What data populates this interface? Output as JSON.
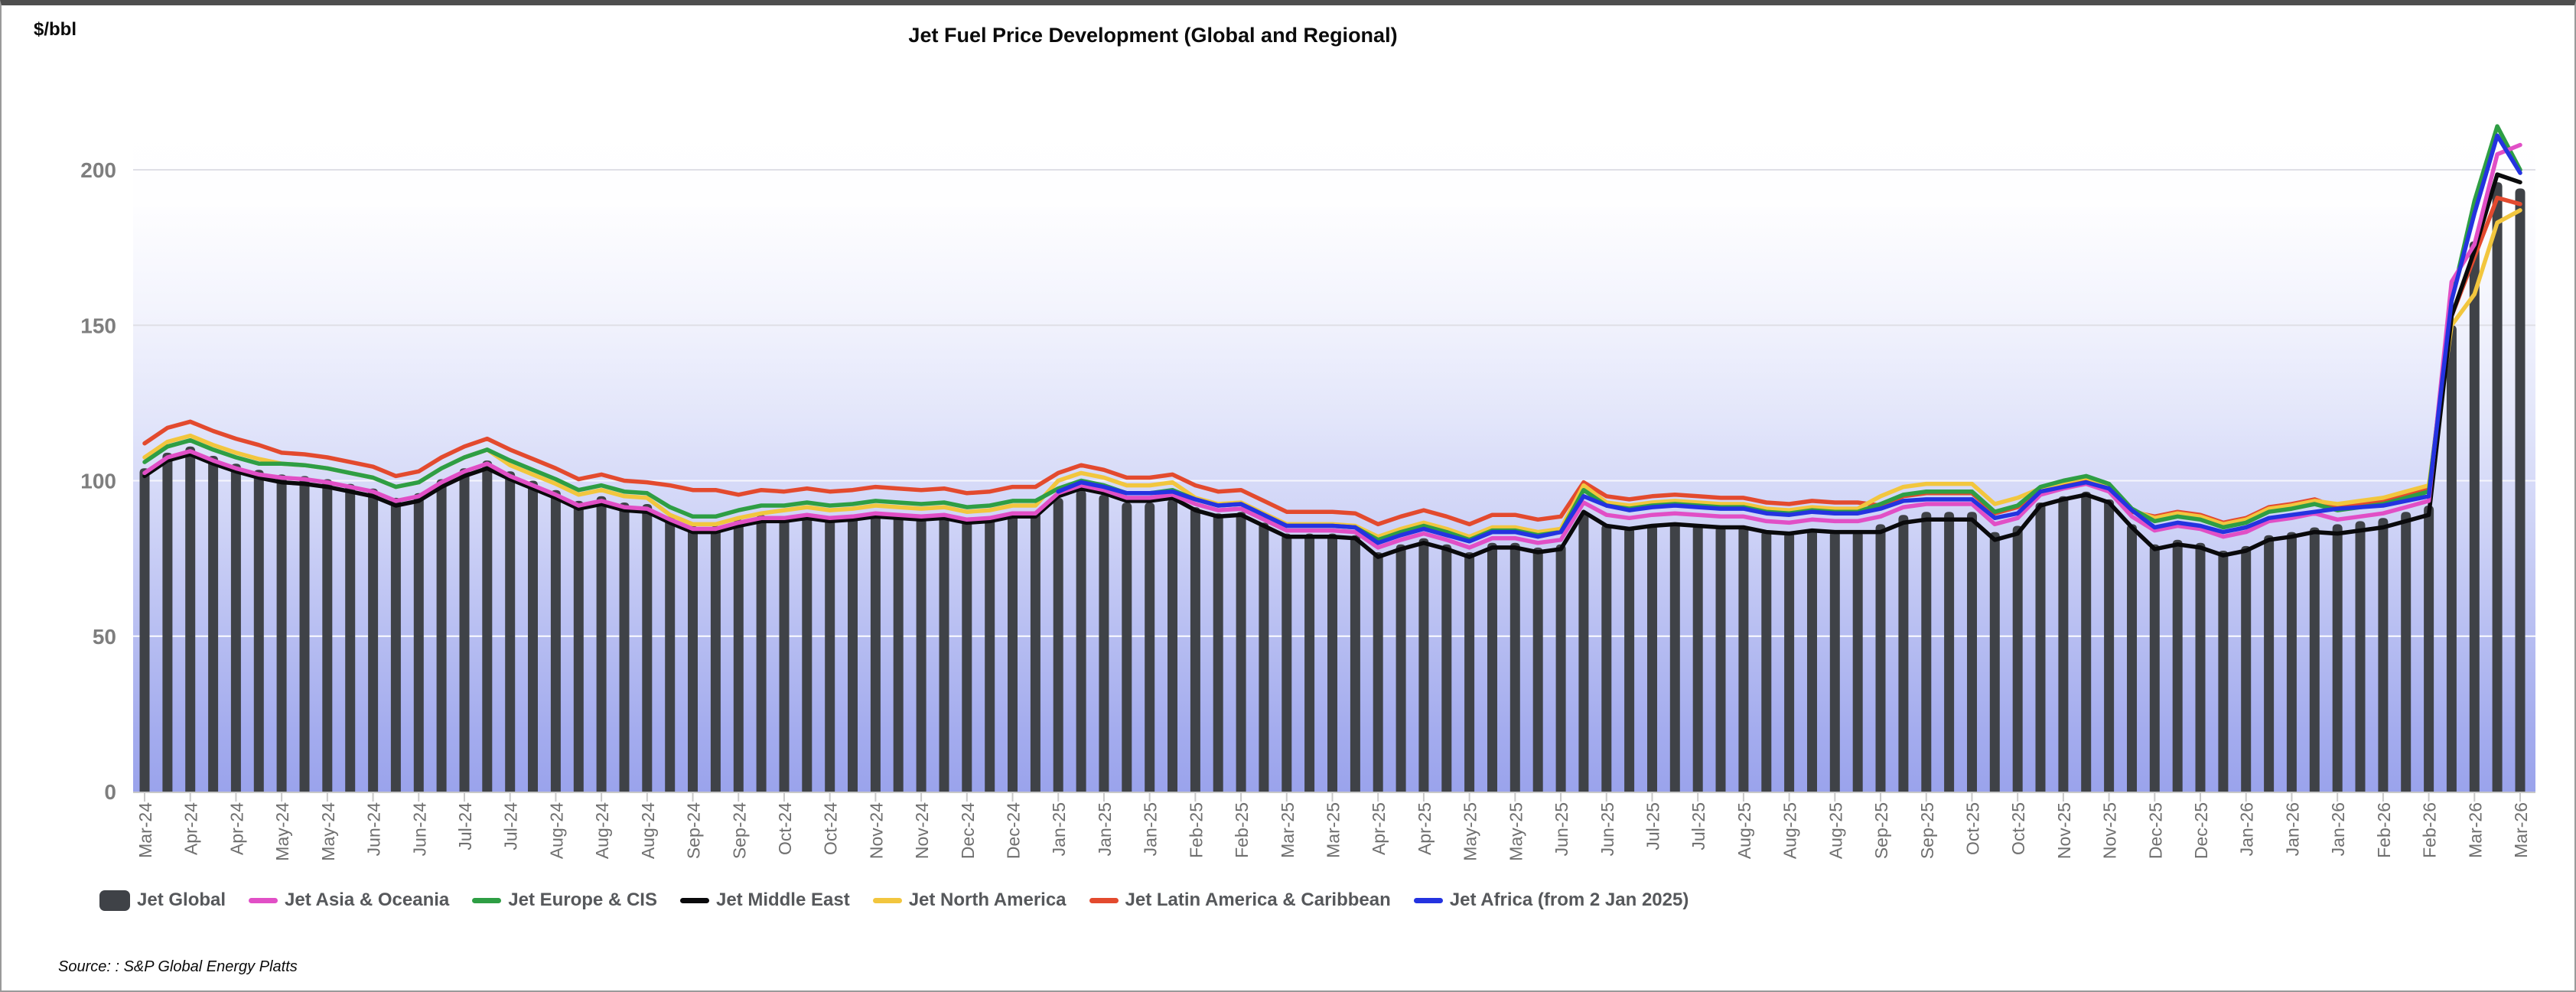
{
  "header": {
    "title": "Jet Fuel Price Development (Global and Regional)",
    "unit": "$/bbl"
  },
  "source": {
    "note": "Source: : S&P Global Energy Platts"
  },
  "chart_data": {
    "type": "bar+line",
    "title": "Jet Fuel Price Development (Global and Regional)",
    "ylabel": "$/bbl",
    "ylim": [
      0,
      216
    ],
    "yticks": [
      0,
      50,
      100,
      150,
      200
    ],
    "grid": "horizontal",
    "legend_position": "bottom",
    "plot_background": {
      "gradient_top": "#ffffff",
      "gradient_bottom": "#9aa3ec"
    },
    "x_label_every_n_bars": 2,
    "x_labels": [
      "Mar-24",
      "Apr-24",
      "Apr-24",
      "May-24",
      "May-24",
      "Jun-24",
      "Jun-24",
      "Jul-24",
      "Jul-24",
      "Aug-24",
      "Aug-24",
      "Aug-24",
      "Sep-24",
      "Sep-24",
      "Oct-24",
      "Oct-24",
      "Nov-24",
      "Nov-24",
      "Dec-24",
      "Dec-24",
      "Jan-25",
      "Jan-25",
      "Jan-25",
      "Feb-25",
      "Feb-25",
      "Mar-25",
      "Mar-25",
      "Apr-25",
      "Apr-25",
      "May-25",
      "May-25",
      "Jun-25",
      "Jun-25",
      "Jul-25",
      "Jul-25",
      "Aug-25",
      "Aug-25",
      "Aug-25",
      "Sep-25",
      "Sep-25",
      "Oct-25",
      "Oct-25",
      "Nov-25",
      "Nov-25",
      "Dec-25",
      "Dec-25",
      "Jan-26",
      "Jan-26",
      "Jan-26",
      "Feb-26",
      "Feb-26",
      "Mar-26",
      "Mar-26"
    ],
    "bar_series": {
      "name": "Jet Global",
      "color": "#3f4247",
      "values": [
        104,
        109,
        111,
        108,
        105.5,
        103.5,
        102,
        101.5,
        100.5,
        99,
        97.5,
        94.5,
        96,
        100.5,
        104,
        106.5,
        103,
        100,
        97,
        93.5,
        95,
        93,
        92.5,
        88.5,
        85.5,
        85.5,
        87.5,
        89,
        88.5,
        89.5,
        88.5,
        89,
        90,
        89.5,
        89,
        89.5,
        88,
        88.5,
        90,
        90,
        94.5,
        97,
        95.5,
        93,
        93,
        94,
        91.5,
        89.5,
        90,
        86.5,
        83,
        83,
        83,
        82.5,
        77,
        79.5,
        81.5,
        79.5,
        77,
        80,
        80,
        78.5,
        79.5,
        89.5,
        86,
        85,
        86,
        86.5,
        86,
        85.5,
        85.5,
        84,
        83.5,
        84.5,
        84,
        84,
        86,
        89,
        90,
        90,
        90,
        83.5,
        85.5,
        93,
        95,
        96.5,
        94,
        86,
        79.5,
        81,
        80,
        77.5,
        79,
        82.5,
        83.5,
        85,
        86,
        87,
        88,
        90,
        92,
        150,
        177,
        196,
        194
      ]
    },
    "line_series": [
      {
        "name": "Jet Asia & Oceania",
        "color": "#e14fc6",
        "values": [
          102.5,
          107.5,
          109.5,
          106.5,
          104,
          102,
          101,
          100.5,
          99.5,
          98,
          96.5,
          93.5,
          95,
          99.5,
          103,
          105.5,
          101.5,
          98.5,
          95.5,
          92,
          93.5,
          91.5,
          91,
          87.5,
          84.5,
          84.5,
          86.5,
          88,
          88,
          89,
          88,
          88.5,
          89.5,
          89,
          88.5,
          89,
          87.5,
          88,
          89.5,
          89.5,
          96,
          98.5,
          97,
          94.5,
          94.5,
          95.5,
          92.5,
          90.5,
          91,
          87.5,
          84,
          84,
          84,
          83.5,
          78.5,
          81,
          83,
          81,
          78.5,
          81.5,
          81.5,
          80,
          81,
          93,
          89,
          88,
          89,
          89.5,
          89,
          88.5,
          88.5,
          87,
          86.5,
          87.5,
          87,
          87,
          88.5,
          91.5,
          92.5,
          92.5,
          92.5,
          86,
          88,
          95.5,
          97.5,
          99,
          96.5,
          88.5,
          84,
          85.5,
          84.5,
          82,
          83.5,
          87,
          88,
          89.5,
          87.5,
          88.5,
          89.5,
          91.5,
          93.5,
          164,
          176,
          205,
          208
        ]
      },
      {
        "name": "Jet Europe & CIS",
        "color": "#2e9e44",
        "values": [
          106,
          111,
          113,
          110,
          107.5,
          105.5,
          105.5,
          105,
          104,
          102.5,
          101,
          98,
          99.5,
          104,
          107.5,
          110,
          106.5,
          103.5,
          100.5,
          97,
          98.5,
          96.5,
          96,
          91.5,
          88.5,
          88.5,
          90.5,
          92,
          92,
          93,
          92,
          92.5,
          93.5,
          93,
          92.5,
          93,
          91.5,
          92,
          93.5,
          93.5,
          97.5,
          100,
          98.5,
          96,
          96,
          97,
          94,
          92,
          92.5,
          89,
          85.5,
          85.5,
          85.5,
          85,
          81,
          83.5,
          85.5,
          83.5,
          81,
          84,
          84,
          82.5,
          83.5,
          97,
          92,
          91,
          92,
          92.5,
          92,
          91.5,
          91.5,
          90,
          89.5,
          90.5,
          90,
          90,
          92.5,
          95.5,
          96.5,
          96.5,
          96.5,
          90,
          92,
          98,
          100,
          101.5,
          99,
          91,
          87,
          88.5,
          87.5,
          85,
          86.5,
          90,
          91,
          92.5,
          90.5,
          91.5,
          92.5,
          94.5,
          96.5,
          158,
          190,
          214,
          200
        ]
      },
      {
        "name": "Jet Middle East",
        "color": "#0a0a0c",
        "values": [
          101.5,
          106.5,
          108.5,
          105.5,
          103,
          101,
          99.5,
          99,
          98,
          96.5,
          95,
          92,
          93.5,
          98,
          101.5,
          104,
          100.5,
          97.5,
          94.5,
          91,
          92.5,
          90.5,
          90,
          86.5,
          83.5,
          83.5,
          85.5,
          87,
          87,
          88,
          87,
          87.5,
          88.5,
          88,
          87.5,
          88,
          86.5,
          87,
          88.5,
          88.5,
          95,
          97.5,
          96,
          93.5,
          93.5,
          94.5,
          90.5,
          88.5,
          89,
          85.5,
          82,
          82,
          82,
          81.5,
          75.5,
          78,
          80,
          78,
          75.5,
          78.5,
          78.5,
          77,
          78,
          90,
          85.5,
          84.5,
          85.5,
          86,
          85.5,
          85,
          85,
          83.5,
          83,
          84,
          83.5,
          83.5,
          83.5,
          86.5,
          87.5,
          87.5,
          87.5,
          81,
          83,
          92,
          94,
          95.5,
          93,
          85,
          78,
          79.5,
          78.5,
          76,
          77.5,
          81,
          82,
          83.5,
          83,
          84,
          85,
          87,
          89,
          153,
          174,
          198.5,
          196
        ]
      },
      {
        "name": "Jet North America",
        "color": "#f2c63e",
        "values": [
          107.5,
          112.5,
          114.5,
          111.5,
          109,
          107,
          105.5,
          105,
          104,
          102.5,
          101,
          98,
          99.5,
          104,
          107.5,
          110,
          105,
          102,
          99,
          95.5,
          97,
          95,
          94.5,
          89,
          86,
          86,
          88,
          89.5,
          90.5,
          91.5,
          90.5,
          91,
          92,
          91.5,
          91,
          91.5,
          90,
          90.5,
          92,
          92,
          100,
          102.5,
          101,
          98.5,
          98.5,
          99.5,
          94.5,
          92.5,
          93,
          89.5,
          86,
          86,
          86,
          85.5,
          82,
          84.5,
          86.5,
          84.5,
          82,
          85,
          85,
          83.5,
          84.5,
          98.5,
          93,
          92,
          93,
          93.5,
          93,
          92.5,
          92.5,
          91,
          90.5,
          91.5,
          91,
          91,
          95,
          98,
          99,
          99,
          99,
          92.5,
          94.5,
          97.5,
          99.5,
          101,
          98.5,
          90.5,
          88,
          89.5,
          88.5,
          86,
          87.5,
          91,
          92,
          93.5,
          92.5,
          93.5,
          94.5,
          96.5,
          98.5,
          150,
          160,
          183,
          187
        ]
      },
      {
        "name": "Jet Latin America & Caribbean",
        "color": "#e34a2e",
        "values": [
          112,
          117,
          119,
          116,
          113.5,
          111.5,
          109,
          108.5,
          107.5,
          106,
          104.5,
          101.5,
          103,
          107.5,
          111,
          113.5,
          110,
          107,
          104,
          100.5,
          102,
          100,
          99.5,
          98.5,
          97,
          97,
          95.5,
          97,
          96.5,
          97.5,
          96.5,
          97,
          98,
          97.5,
          97,
          97.5,
          96,
          96.5,
          98,
          98,
          102.5,
          105,
          103.5,
          101,
          101,
          102,
          98.5,
          96.5,
          97,
          93.5,
          90,
          90,
          90,
          89.5,
          86,
          88.5,
          90.5,
          88.5,
          86,
          89,
          89,
          87.5,
          88.5,
          99.5,
          95,
          94,
          95,
          95.5,
          95,
          94.5,
          94.5,
          93,
          92.5,
          93.5,
          93,
          93,
          92,
          95,
          96,
          96,
          96,
          89.5,
          91.5,
          97,
          99,
          100.5,
          98,
          90,
          88.5,
          90,
          89,
          86.5,
          88,
          91.5,
          92.5,
          94,
          91.5,
          92.5,
          93.5,
          95.5,
          97.5,
          153,
          172,
          191,
          189
        ]
      },
      {
        "name": "Jet Africa (from 2 Jan 2025)",
        "color": "#2433e0",
        "values": [
          null,
          null,
          null,
          null,
          null,
          null,
          null,
          null,
          null,
          null,
          null,
          null,
          null,
          null,
          null,
          null,
          null,
          null,
          null,
          null,
          null,
          null,
          null,
          null,
          null,
          null,
          null,
          null,
          null,
          null,
          null,
          null,
          null,
          null,
          null,
          null,
          null,
          null,
          null,
          null,
          96.5,
          99.5,
          98,
          96,
          96,
          96.5,
          94,
          92,
          92.5,
          89,
          85.5,
          85.5,
          85.5,
          85,
          80,
          82.5,
          84.5,
          82.5,
          80.5,
          83.5,
          83.5,
          82,
          83.5,
          95,
          92,
          90.5,
          91.5,
          92,
          91.5,
          91,
          91,
          89.5,
          89,
          90,
          89.5,
          89.5,
          91,
          93.5,
          94,
          94,
          94,
          88,
          89.5,
          96.5,
          98,
          99.5,
          97.5,
          90.5,
          85,
          86.5,
          85.5,
          83.5,
          85,
          88,
          89,
          90,
          91,
          91.5,
          92,
          93.5,
          95,
          158,
          186,
          211,
          199
        ]
      }
    ]
  }
}
